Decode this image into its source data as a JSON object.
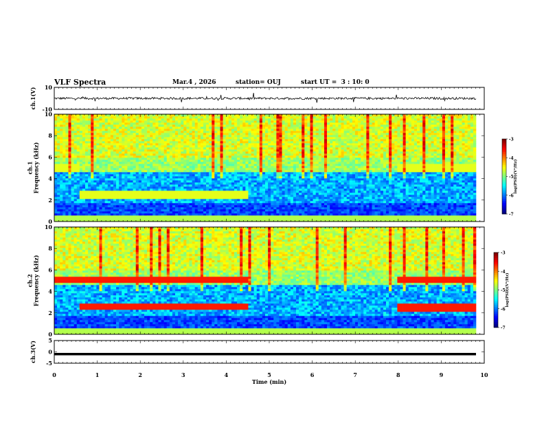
{
  "header": {
    "title": "VLF Spectra",
    "date": "Mar.4 , 2026",
    "station": "station= OUJ",
    "start": "start UT =  3 : 10: 0"
  },
  "chart_data": [
    {
      "type": "line",
      "title": "ch.1(V)",
      "ylabel": "ch.1(V)",
      "yticks": [
        "10",
        "-10"
      ],
      "ylim": [
        -10,
        10
      ],
      "xlim": [
        0,
        10
      ],
      "description_values": {
        "baseline": 0,
        "noise_amplitude": 2
      }
    },
    {
      "type": "heatmap",
      "title": "ch.1 Frequency (kHz)",
      "ylabel": "ch.1\nFrequency (kHz)",
      "yticks": [
        "0",
        "2",
        "4",
        "6",
        "8",
        "10"
      ],
      "ylim": [
        0,
        10
      ],
      "xlim": [
        0,
        10
      ],
      "colorbar": {
        "label": "log(PSD)(V²/Hz)",
        "ticks": [
          "-3",
          "-4",
          "-5",
          "-6",
          "-7"
        ],
        "range": [
          -7,
          -3
        ]
      },
      "bands": [
        {
          "f": 2.5,
          "t_start": 0.6,
          "t_end": 4.5
        },
        {
          "f": 5.0,
          "t_start": 8.0,
          "t_end": 9.8
        },
        {
          "f": 5.0,
          "t_start": 0.0,
          "t_end": 0.6
        }
      ]
    },
    {
      "type": "heatmap",
      "title": "ch.2 Frequency (kHz)",
      "ylabel": "ch.2\nFrequency (kHz)",
      "yticks": [
        "0",
        "2",
        "4",
        "6",
        "8",
        "10"
      ],
      "ylim": [
        0,
        10
      ],
      "xlim": [
        0,
        10
      ],
      "colorbar": {
        "label": "log(PSD)(V²/Hz)",
        "ticks": [
          "-3",
          "-4",
          "-5",
          "-6",
          "-7"
        ],
        "range": [
          -7,
          -3
        ]
      },
      "bands": [
        {
          "f": 5.1,
          "t_start": 0.0,
          "t_end": 4.5
        },
        {
          "f": 2.6,
          "t_start": 0.6,
          "t_end": 4.5
        },
        {
          "f": 5.1,
          "t_start": 8.0,
          "t_end": 9.8
        },
        {
          "f": 2.5,
          "t_start": 8.0,
          "t_end": 9.8
        }
      ]
    },
    {
      "type": "line",
      "title": "ch.3(V)",
      "ylabel": "ch.3(V)",
      "yticks": [
        "5",
        "0",
        "-5"
      ],
      "ylim": [
        -5,
        5
      ],
      "xlim": [
        0,
        10
      ],
      "description_values": {
        "constant": -1
      }
    }
  ],
  "xaxis": {
    "label": "Time (min)",
    "ticks": [
      "0",
      "1",
      "2",
      "3",
      "4",
      "5",
      "6",
      "7",
      "8",
      "9",
      "10"
    ]
  }
}
